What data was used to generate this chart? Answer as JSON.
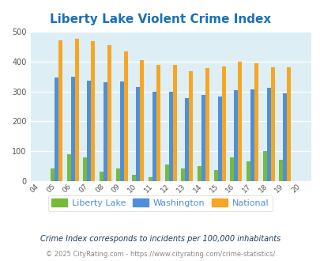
{
  "title": "Liberty Lake Violent Crime Index",
  "years": [
    "04",
    "05",
    "06",
    "07",
    "08",
    "09",
    "10",
    "11",
    "12",
    "13",
    "14",
    "15",
    "16",
    "17",
    "18",
    "19",
    "20"
  ],
  "liberty_lake": [
    0,
    43,
    90,
    80,
    33,
    43,
    22,
    13,
    55,
    43,
    52,
    37,
    80,
    67,
    100,
    73,
    0
  ],
  "washington": [
    0,
    347,
    350,
    336,
    331,
    332,
    315,
    299,
    299,
    278,
    288,
    283,
    304,
    306,
    312,
    294,
    0
  ],
  "national": [
    0,
    469,
    474,
    467,
    455,
    432,
    405,
    387,
    387,
    368,
    378,
    384,
    398,
    394,
    381,
    380,
    0
  ],
  "liberty_lake_color": "#76bb3a",
  "washington_color": "#4f8fda",
  "national_color": "#f5a623",
  "bg_color": "#ddeef5",
  "title_color": "#1a6fba",
  "ylabel_max": 500,
  "yticks": [
    0,
    100,
    200,
    300,
    400,
    500
  ],
  "footer1": "Crime Index corresponds to incidents per 100,000 inhabitants",
  "footer2": "© 2025 CityRating.com - https://www.cityrating.com/crime-statistics/",
  "legend_labels": [
    "Liberty Lake",
    "Washington",
    "National"
  ]
}
